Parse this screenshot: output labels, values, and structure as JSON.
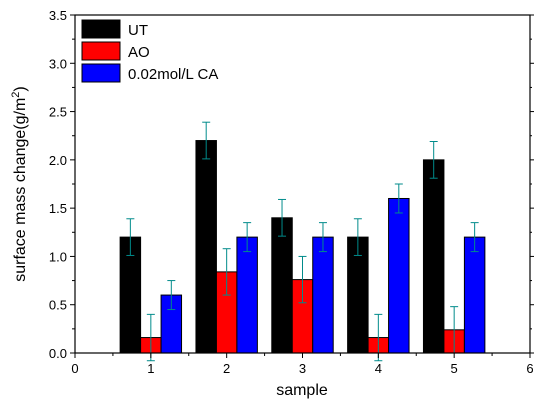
{
  "chart_data": {
    "type": "bar",
    "title": "",
    "xlabel": "sample",
    "ylabel_main": "surface mass change(g/m",
    "ylabel_sup": "2",
    "ylabel_close": ")",
    "xlim": [
      0,
      6
    ],
    "ylim": [
      0,
      3.5
    ],
    "x_ticks": [
      0,
      1,
      2,
      3,
      4,
      5,
      6
    ],
    "y_ticks": [
      0.0,
      0.5,
      1.0,
      1.5,
      2.0,
      2.5,
      3.0,
      3.5
    ],
    "y_tick_labels": [
      "0.0",
      "0.5",
      "1.0",
      "1.5",
      "2.0",
      "2.5",
      "3.0",
      "3.5"
    ],
    "categories": [
      1,
      2,
      3,
      4,
      5
    ],
    "grid": false,
    "legend_position": "top-left",
    "series": [
      {
        "name": "UT",
        "color": "#000000",
        "values": [
          1.2,
          2.2,
          1.4,
          1.2,
          2.0
        ],
        "errors": [
          0.19,
          0.19,
          0.19,
          0.19,
          0.19
        ]
      },
      {
        "name": "AO",
        "color": "#ff0000",
        "values": [
          0.16,
          0.84,
          0.76,
          0.16,
          0.24
        ],
        "errors": [
          0.24,
          0.24,
          0.24,
          0.24,
          0.24
        ]
      },
      {
        "name": "0.02mol/L CA",
        "color": "#0000ff",
        "values": [
          0.6,
          1.2,
          1.2,
          1.6,
          1.2
        ],
        "errors": [
          0.15,
          0.15,
          0.15,
          0.15,
          0.15
        ]
      }
    ],
    "error_bar_color": "#008b8b"
  }
}
